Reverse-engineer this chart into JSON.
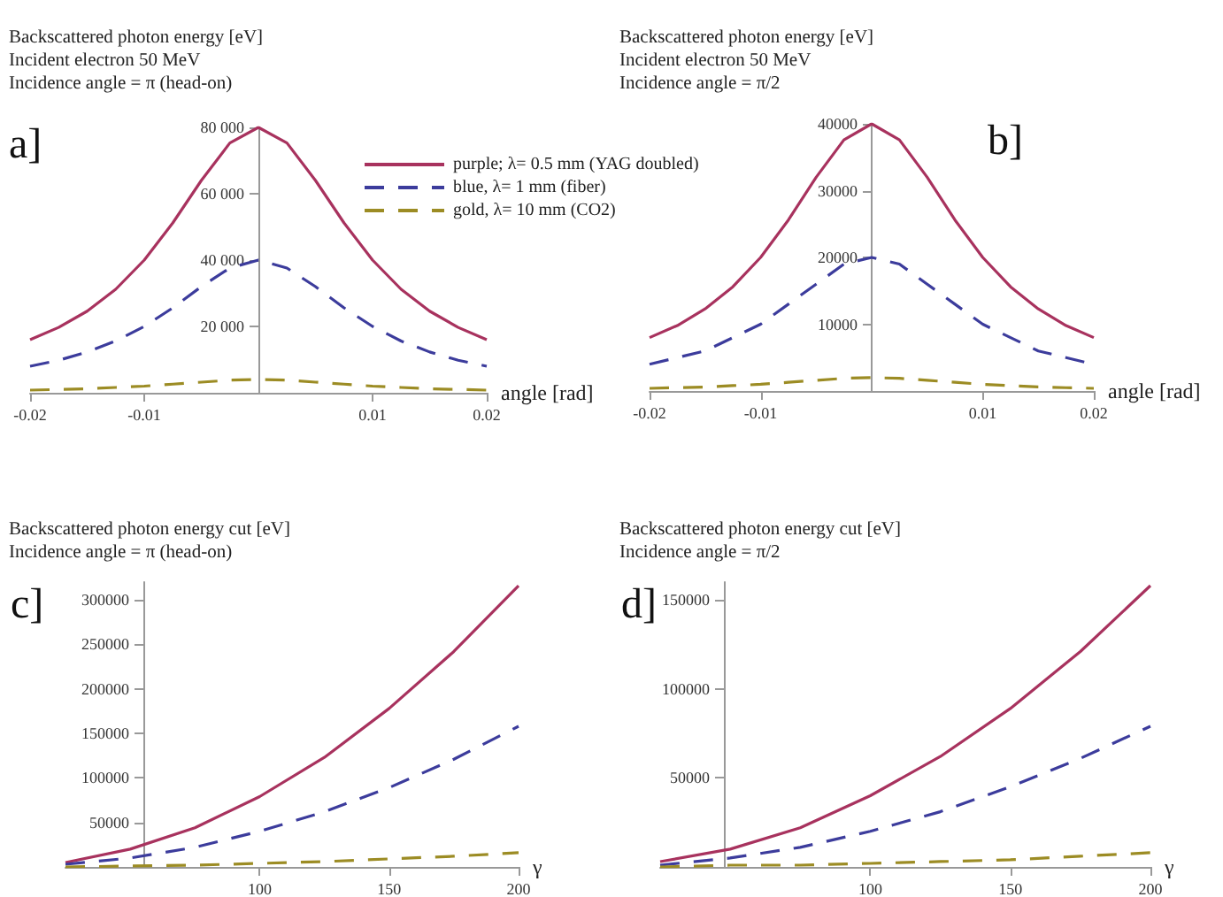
{
  "chart_data": [
    {
      "type": "line",
      "title": "Backscattered photon energy [eV]\nIncident electron 50 MeV\nIncidence angle = π (head-on)",
      "xlabel": "angle [rad]",
      "annotations": [
        "a]"
      ],
      "legend": "top right",
      "marker": "none",
      "grid": false,
      "x": [
        -0.02,
        -0.0175,
        -0.015,
        -0.0125,
        -0.01,
        -0.0075,
        -0.005,
        -0.0025,
        0,
        0.0025,
        0.005,
        0.0075,
        0.01,
        0.0125,
        0.015,
        0.0175,
        0.02
      ],
      "xlim": [
        -0.02,
        0.02
      ],
      "xticks": [
        -0.02,
        -0.01,
        0.01,
        0.02
      ],
      "ylim": [
        0,
        80000
      ],
      "yticks": [
        {
          "value": 20000,
          "label": "20 000"
        },
        {
          "value": 40000,
          "label": "40 000"
        },
        {
          "value": 60000,
          "label": "60 000"
        },
        {
          "value": 80000,
          "label": "80 000"
        }
      ],
      "series": [
        {
          "name": "purple; λ= 0.5 mm (YAG doubled)",
          "color": "#a8325e",
          "line_style": "solid",
          "values": [
            16000,
            19700,
            24600,
            31200,
            40000,
            51200,
            64000,
            75300,
            80000,
            75300,
            64000,
            51200,
            40000,
            31200,
            24600,
            19700,
            16000
          ]
        },
        {
          "name": "blue, λ= 1 mm (fiber)",
          "color": "#3c3c9c",
          "line_style": "dashed",
          "values": [
            8000,
            9800,
            12300,
            15600,
            20000,
            25600,
            32000,
            37600,
            40000,
            37600,
            32000,
            25600,
            20000,
            15600,
            12300,
            9800,
            8000
          ]
        },
        {
          "name": "gold, λ= 10 mm (CO2)",
          "color": "#9c8c24",
          "line_style": "dashed",
          "values": [
            800,
            1000,
            1200,
            1600,
            2000,
            2600,
            3200,
            3800,
            4000,
            3800,
            3200,
            2600,
            2000,
            1600,
            1200,
            1000,
            800
          ]
        }
      ]
    },
    {
      "type": "line",
      "title": "Backscattered photon energy [eV]\nIncident electron 50 MeV\nIncidence angle = π/2",
      "xlabel": "angle [rad]",
      "annotations": [
        "b]"
      ],
      "marker": "none",
      "grid": false,
      "x": [
        -0.02,
        -0.0175,
        -0.015,
        -0.0125,
        -0.01,
        -0.0075,
        -0.005,
        -0.0025,
        0,
        0.0025,
        0.005,
        0.0075,
        0.01,
        0.0125,
        0.015,
        0.0175,
        0.02
      ],
      "xlim": [
        -0.02,
        0.02
      ],
      "xticks": [
        -0.02,
        -0.01,
        0.01,
        0.02
      ],
      "ylim": [
        0,
        40000
      ],
      "yticks": [
        10000,
        20000,
        30000,
        40000
      ],
      "series": [
        {
          "color": "#a8325e",
          "line_style": "solid",
          "values": [
            8000,
            9800,
            12300,
            15600,
            20000,
            25600,
            32000,
            37600,
            40000,
            37600,
            32000,
            25600,
            20000,
            15600,
            12300,
            9800,
            8000
          ]
        },
        {
          "color": "#3c3c9c",
          "line_style": "dashed",
          "values": [
            4000,
            5000,
            6000,
            8000,
            10000,
            13000,
            16000,
            19000,
            20000,
            19000,
            16000,
            13000,
            10000,
            8000,
            6000,
            5000,
            4000
          ]
        },
        {
          "color": "#9c8c24",
          "line_style": "dashed",
          "values": [
            400,
            500,
            600,
            800,
            1000,
            1300,
            1600,
            1900,
            2000,
            1900,
            1600,
            1300,
            1000,
            800,
            600,
            500,
            400
          ]
        }
      ]
    },
    {
      "type": "line",
      "title": "Backscattered photon energy cut [eV]\nIncidence angle = π (head-on)",
      "xlabel": "γ",
      "annotations": [
        "c]"
      ],
      "marker": "none",
      "grid": false,
      "x": [
        25,
        50,
        75,
        100,
        125,
        150,
        175,
        200
      ],
      "xlim": [
        25,
        200
      ],
      "xticks": [
        100,
        150,
        200
      ],
      "ylim": [
        0,
        320000
      ],
      "yticks": [
        50000,
        100000,
        150000,
        200000,
        250000,
        300000
      ],
      "series": [
        {
          "color": "#a8325e",
          "line_style": "solid",
          "values": [
            5000,
            20000,
            44000,
            79000,
            123000,
            178000,
            242000,
            316000
          ]
        },
        {
          "color": "#3c3c9c",
          "line_style": "dashed",
          "values": [
            3000,
            10000,
            22000,
            40000,
            62000,
            89000,
            121000,
            158000
          ]
        },
        {
          "color": "#9c8c24",
          "line_style": "dashed",
          "values": [
            0,
            1000,
            2000,
            4000,
            6000,
            9000,
            12000,
            16000
          ]
        }
      ]
    },
    {
      "type": "line",
      "title": "Backscattered photon energy cut [eV]\nIncidence angle = π/2",
      "xlabel": "γ",
      "annotations": [
        "d]"
      ],
      "marker": "none",
      "grid": false,
      "x": [
        25,
        50,
        75,
        100,
        125,
        150,
        175,
        200
      ],
      "xlim": [
        25,
        200
      ],
      "xticks": [
        100,
        150,
        200
      ],
      "ylim": [
        0,
        160000
      ],
      "yticks": [
        50000,
        100000,
        150000
      ],
      "series": [
        {
          "color": "#a8325e",
          "line_style": "solid",
          "values": [
            3000,
            10000,
            22000,
            40000,
            62000,
            89000,
            121000,
            158000
          ]
        },
        {
          "color": "#3c3c9c",
          "line_style": "dashed",
          "values": [
            1000,
            5000,
            11000,
            20000,
            31000,
            45000,
            61000,
            79000
          ]
        },
        {
          "color": "#9c8c24",
          "line_style": "dashed",
          "values": [
            0,
            1000,
            1000,
            2000,
            3000,
            4000,
            6000,
            8000
          ]
        }
      ]
    }
  ]
}
